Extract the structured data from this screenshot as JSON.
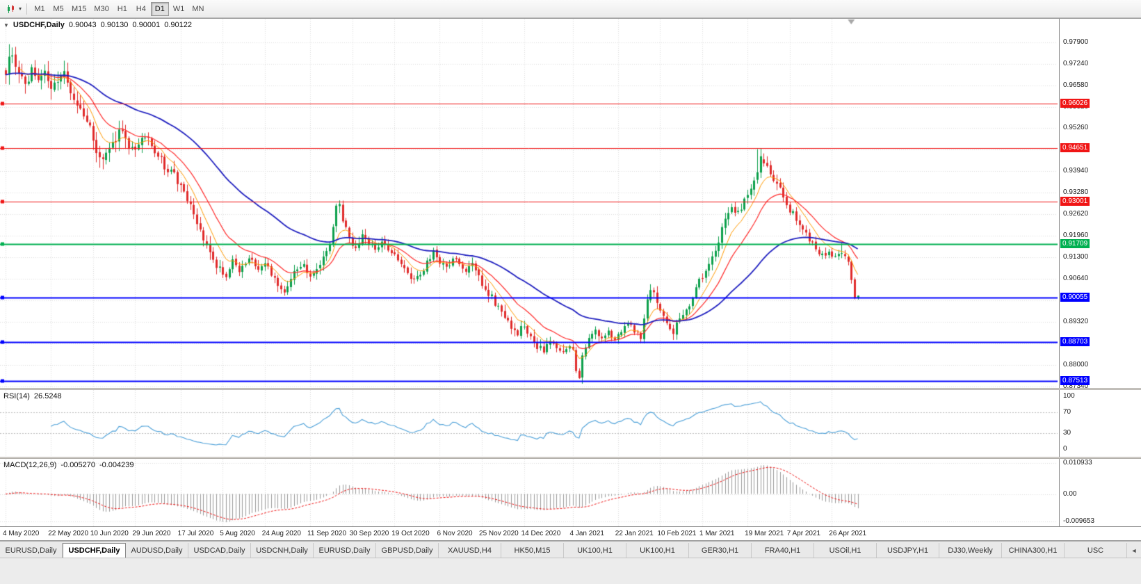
{
  "toolbar": {
    "chart_type_icon": "candlestick-chart-icon",
    "timeframes": [
      {
        "label": "M1",
        "active": false
      },
      {
        "label": "M5",
        "active": false
      },
      {
        "label": "M15",
        "active": false
      },
      {
        "label": "M30",
        "active": false
      },
      {
        "label": "H1",
        "active": false
      },
      {
        "label": "H4",
        "active": false
      },
      {
        "label": "D1",
        "active": true
      },
      {
        "label": "W1",
        "active": false
      },
      {
        "label": "MN",
        "active": false
      }
    ]
  },
  "chart": {
    "symbol_label": "USDCHF,Daily",
    "ohlc": {
      "open": "0.90043",
      "high": "0.90130",
      "low": "0.90001",
      "close": "0.90122"
    },
    "y_axis": {
      "max": 0.9862,
      "min": 0.8729,
      "ticks": [
        "0.97900",
        "0.97240",
        "0.96580",
        "0.95920",
        "0.95260",
        "0.94600",
        "0.93940",
        "0.93280",
        "0.92620",
        "0.91960",
        "0.91300",
        "0.90640",
        "0.89980",
        "0.89320",
        "0.88660",
        "0.88000",
        "0.87340"
      ]
    },
    "hlines": [
      {
        "value": 0.96026,
        "label": "0.96026",
        "color": "#f01515",
        "width": 1
      },
      {
        "value": 0.94651,
        "label": "0.94651",
        "color": "#f01515",
        "width": 1
      },
      {
        "value": 0.93001,
        "label": "0.93001",
        "color": "#f01515",
        "width": 1
      },
      {
        "value": 0.91709,
        "label": "0.91709",
        "color": "#00b050",
        "width": 2
      },
      {
        "value": 0.90055,
        "label": "0.90055",
        "color": "#0000ff",
        "width": 2
      },
      {
        "value": 0.88703,
        "label": "0.88703",
        "color": "#0000ff",
        "width": 2
      },
      {
        "value": 0.87513,
        "label": "0.87513",
        "color": "#0000ff",
        "width": 2
      }
    ],
    "x_axis": {
      "labels": [
        {
          "text": "4 May 2020",
          "i": 0
        },
        {
          "text": "22 May 2020",
          "i": 14
        },
        {
          "text": "10 Jun 2020",
          "i": 27
        },
        {
          "text": "29 Jun 2020",
          "i": 40
        },
        {
          "text": "17 Jul 2020",
          "i": 54
        },
        {
          "text": "5 Aug 2020",
          "i": 67
        },
        {
          "text": "24 Aug 2020",
          "i": 80
        },
        {
          "text": "11 Sep 2020",
          "i": 94
        },
        {
          "text": "30 Sep 2020",
          "i": 107
        },
        {
          "text": "19 Oct 2020",
          "i": 120
        },
        {
          "text": "6 Nov 2020",
          "i": 134
        },
        {
          "text": "25 Nov 2020",
          "i": 147
        },
        {
          "text": "14 Dec 2020",
          "i": 160
        },
        {
          "text": "4 Jan 2021",
          "i": 175
        },
        {
          "text": "22 Jan 2021",
          "i": 189
        },
        {
          "text": "10 Feb 2021",
          "i": 202
        },
        {
          "text": "1 Mar 2021",
          "i": 215
        },
        {
          "text": "19 Mar 2021",
          "i": 229
        },
        {
          "text": "7 Apr 2021",
          "i": 242
        },
        {
          "text": "26 Apr 2021",
          "i": 255
        }
      ]
    }
  },
  "rsi": {
    "label": "RSI(14)",
    "value": "26.5248",
    "ticks": [
      {
        "text": "100",
        "v": 100
      },
      {
        "text": "70",
        "v": 70
      },
      {
        "text": "30",
        "v": 30
      },
      {
        "text": "0",
        "v": 0
      }
    ],
    "levels": [
      70,
      30
    ],
    "range": {
      "max": 112,
      "min": -14
    },
    "color": "#4a9fd8"
  },
  "macd": {
    "label": "MACD(12,26,9)",
    "value_main": "-0.005270",
    "value_signal": "-0.004239",
    "ticks": [
      {
        "text": "0.010933",
        "v": 0.010933
      },
      {
        "text": "0.00",
        "v": 0
      },
      {
        "text": "-0.009653",
        "v": -0.009653
      }
    ],
    "range": {
      "max": 0.0124,
      "min": -0.0114
    },
    "histogram_color": "#9a9a9a",
    "signal_color": "#f01515"
  },
  "tabs": {
    "scroll_icon": "◄",
    "items": [
      {
        "label": "EURUSD,Daily",
        "active": false
      },
      {
        "label": "USDCHF,Daily",
        "active": true
      },
      {
        "label": "AUDUSD,Daily",
        "active": false
      },
      {
        "label": "USDCAD,Daily",
        "active": false
      },
      {
        "label": "USDCNH,Daily",
        "active": false
      },
      {
        "label": "EURUSD,Daily",
        "active": false
      },
      {
        "label": "GBPUSD,Daily",
        "active": false
      },
      {
        "label": "XAUUSD,H4",
        "active": false
      },
      {
        "label": "HK50,M15",
        "active": false
      },
      {
        "label": "UK100,H1",
        "active": false
      },
      {
        "label": "UK100,H1",
        "active": false
      },
      {
        "label": "GER30,H1",
        "active": false
      },
      {
        "label": "FRA40,H1",
        "active": false
      },
      {
        "label": "USOil,H1",
        "active": false
      },
      {
        "label": "USDJPY,H1",
        "active": false
      },
      {
        "label": "DJ30,Weekly",
        "active": false
      },
      {
        "label": "CHINA300,H1",
        "active": false
      },
      {
        "label": "USC",
        "active": false
      }
    ]
  },
  "chart_data": {
    "type": "candlestick",
    "symbol": "USDCHF",
    "timeframe": "Daily",
    "candle_count": 264,
    "seed": 9,
    "colors": {
      "up": "#0da04c",
      "down": "#e02b2b",
      "ma_fast": "#ff9a00",
      "ma_mid": "#ff2b2b",
      "ma_slow": "#2020c0"
    },
    "ma_periods": {
      "fast": 8,
      "mid": 17,
      "slow": 52
    },
    "close_anchors": [
      [
        0,
        0.97
      ],
      [
        1,
        0.9738
      ],
      [
        2,
        0.9762
      ],
      [
        3,
        0.9722
      ],
      [
        4,
        0.969
      ],
      [
        6,
        0.9656
      ],
      [
        8,
        0.9702
      ],
      [
        10,
        0.9672
      ],
      [
        12,
        0.97
      ],
      [
        14,
        0.9642
      ],
      [
        16,
        0.9662
      ],
      [
        18,
        0.9686
      ],
      [
        20,
        0.9626
      ],
      [
        22,
        0.9596
      ],
      [
        24,
        0.9572
      ],
      [
        26,
        0.9536
      ],
      [
        28,
        0.9462
      ],
      [
        30,
        0.942
      ],
      [
        32,
        0.9452
      ],
      [
        34,
        0.95
      ],
      [
        36,
        0.9522
      ],
      [
        38,
        0.9476
      ],
      [
        40,
        0.9466
      ],
      [
        42,
        0.9506
      ],
      [
        44,
        0.949
      ],
      [
        46,
        0.9446
      ],
      [
        48,
        0.9426
      ],
      [
        50,
        0.9396
      ],
      [
        52,
        0.938
      ],
      [
        54,
        0.9346
      ],
      [
        56,
        0.9306
      ],
      [
        58,
        0.9256
      ],
      [
        60,
        0.921
      ],
      [
        62,
        0.916
      ],
      [
        64,
        0.9126
      ],
      [
        66,
        0.9092
      ],
      [
        68,
        0.9072
      ],
      [
        70,
        0.912
      ],
      [
        72,
        0.9086
      ],
      [
        74,
        0.911
      ],
      [
        76,
        0.913
      ],
      [
        78,
        0.9092
      ],
      [
        80,
        0.9116
      ],
      [
        82,
        0.9076
      ],
      [
        84,
        0.9042
      ],
      [
        86,
        0.9028
      ],
      [
        88,
        0.9066
      ],
      [
        90,
        0.9096
      ],
      [
        92,
        0.9106
      ],
      [
        94,
        0.9072
      ],
      [
        96,
        0.9086
      ],
      [
        98,
        0.9126
      ],
      [
        100,
        0.9176
      ],
      [
        101,
        0.9226
      ],
      [
        102,
        0.9282
      ],
      [
        103,
        0.9292
      ],
      [
        104,
        0.9242
      ],
      [
        106,
        0.9186
      ],
      [
        108,
        0.9152
      ],
      [
        110,
        0.92
      ],
      [
        112,
        0.9172
      ],
      [
        114,
        0.9146
      ],
      [
        116,
        0.9176
      ],
      [
        118,
        0.9156
      ],
      [
        120,
        0.9142
      ],
      [
        122,
        0.9112
      ],
      [
        124,
        0.9082
      ],
      [
        126,
        0.9056
      ],
      [
        128,
        0.9072
      ],
      [
        130,
        0.9116
      ],
      [
        132,
        0.9146
      ],
      [
        134,
        0.9116
      ],
      [
        136,
        0.9096
      ],
      [
        138,
        0.9126
      ],
      [
        140,
        0.9106
      ],
      [
        142,
        0.9092
      ],
      [
        144,
        0.9106
      ],
      [
        146,
        0.9066
      ],
      [
        148,
        0.9036
      ],
      [
        150,
        0.9006
      ],
      [
        152,
        0.8972
      ],
      [
        154,
        0.8946
      ],
      [
        156,
        0.8916
      ],
      [
        158,
        0.8896
      ],
      [
        160,
        0.8922
      ],
      [
        162,
        0.8886
      ],
      [
        164,
        0.8856
      ],
      [
        166,
        0.8842
      ],
      [
        168,
        0.8866
      ],
      [
        170,
        0.8852
      ],
      [
        172,
        0.8832
      ],
      [
        174,
        0.8866
      ],
      [
        175,
        0.8842
      ],
      [
        176,
        0.8786
      ],
      [
        177,
        0.8768
      ],
      [
        178,
        0.8836
      ],
      [
        180,
        0.8876
      ],
      [
        182,
        0.8902
      ],
      [
        184,
        0.8882
      ],
      [
        186,
        0.8906
      ],
      [
        188,
        0.8876
      ],
      [
        190,
        0.8902
      ],
      [
        192,
        0.8932
      ],
      [
        194,
        0.8906
      ],
      [
        196,
        0.8886
      ],
      [
        198,
        0.8996
      ],
      [
        199,
        0.9036
      ],
      [
        200,
        0.9016
      ],
      [
        202,
        0.8962
      ],
      [
        204,
        0.8922
      ],
      [
        206,
        0.8902
      ],
      [
        208,
        0.8942
      ],
      [
        210,
        0.8972
      ],
      [
        212,
        0.9006
      ],
      [
        214,
        0.9056
      ],
      [
        216,
        0.9086
      ],
      [
        218,
        0.9132
      ],
      [
        220,
        0.9182
      ],
      [
        222,
        0.9246
      ],
      [
        224,
        0.9286
      ],
      [
        226,
        0.9266
      ],
      [
        228,
        0.9302
      ],
      [
        230,
        0.9336
      ],
      [
        232,
        0.9392
      ],
      [
        233,
        0.9436
      ],
      [
        234,
        0.9422
      ],
      [
        236,
        0.9386
      ],
      [
        238,
        0.9356
      ],
      [
        240,
        0.9316
      ],
      [
        242,
        0.9276
      ],
      [
        244,
        0.9246
      ],
      [
        246,
        0.9216
      ],
      [
        248,
        0.9186
      ],
      [
        250,
        0.9156
      ],
      [
        252,
        0.9136
      ],
      [
        254,
        0.9152
      ],
      [
        256,
        0.9126
      ],
      [
        258,
        0.9146
      ],
      [
        260,
        0.9116
      ],
      [
        261,
        0.9066
      ],
      [
        262,
        0.9006
      ],
      [
        263,
        0.9012
      ]
    ],
    "overrides": [
      {
        "i": 1,
        "h": 0.9784
      },
      {
        "i": 3,
        "h": 0.9776
      },
      {
        "i": 177,
        "l": 0.8757
      },
      {
        "i": 232,
        "h": 0.9462
      },
      {
        "i": 233,
        "h": 0.94651,
        "c": 0.944
      },
      {
        "i": 258,
        "h": 0.9174
      },
      {
        "i": 262,
        "o": 0.9062,
        "h": 0.9068,
        "l": 0.9001,
        "c": 0.9006
      },
      {
        "i": 263,
        "o": 0.90043,
        "h": 0.9013,
        "l": 0.90001,
        "c": 0.90122
      }
    ]
  }
}
